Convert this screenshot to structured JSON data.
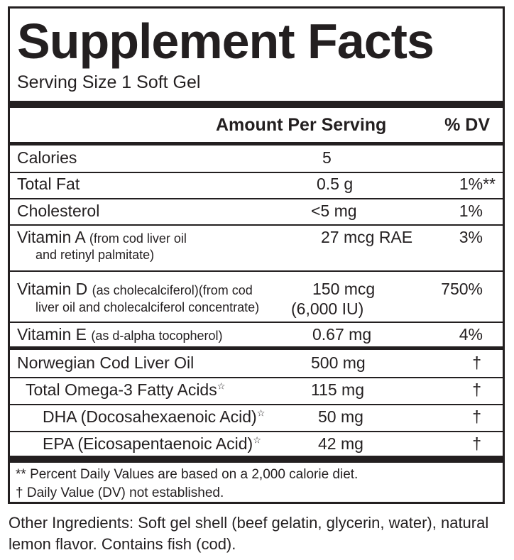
{
  "title": "Supplement Facts",
  "serving_size": "Serving Size 1 Soft Gel",
  "header": {
    "amount": "Amount Per Serving",
    "dv": "% DV"
  },
  "nutrients": [
    {
      "name": "Calories",
      "detail": "",
      "detail2": "",
      "amount": "5",
      "amount2": "",
      "dv": ""
    },
    {
      "name": "Total Fat",
      "detail": "",
      "detail2": "",
      "amount": "0.5 g",
      "amount2": "",
      "dv": "1%**"
    },
    {
      "name": "Cholesterol",
      "detail": "",
      "detail2": "",
      "amount": "<5 mg",
      "amount2": "",
      "dv": "1%"
    },
    {
      "name": "Vitamin A",
      "detail": "(from cod liver oil",
      "detail2": "and retinyl palmitate)",
      "amount": "27 mcg RAE",
      "amount2": "",
      "dv": "3%"
    },
    {
      "name": "Vitamin D",
      "detail": "(as cholecalciferol)(from cod",
      "detail2": "liver oil and cholecalciferol concentrate)",
      "amount": "150 mcg",
      "amount2": "(6,000 IU)",
      "dv": "750%"
    },
    {
      "name": "Vitamin E",
      "detail": "(as d-alpha tocopherol)",
      "detail2": "",
      "amount": "0.67 mg",
      "amount2": "",
      "dv": "4%"
    }
  ],
  "other_nutrients": [
    {
      "name": "Norwegian Cod Liver Oil",
      "star": "",
      "amount": "500 mg",
      "dv": "†"
    },
    {
      "name": "Total Omega-3 Fatty Acids",
      "star": "☆",
      "amount": "115 mg",
      "dv": "†"
    },
    {
      "name": "DHA (Docosahexaenoic Acid)",
      "star": "☆",
      "amount": "50 mg",
      "dv": "†"
    },
    {
      "name": "EPA (Eicosapentaenoic Acid)",
      "star": "☆",
      "amount": "42 mg",
      "dv": "†"
    }
  ],
  "footnotes": [
    "** Percent Daily Values are based on a 2,000 calorie diet.",
    "† Daily Value (DV) not established."
  ],
  "other_ingredients": "Other Ingredients:  Soft gel shell (beef gelatin, glycerin, water), natural lemon flavor.   Contains fish (cod)."
}
